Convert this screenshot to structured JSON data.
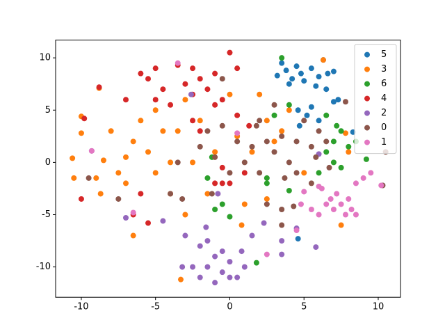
{
  "chart_data": {
    "type": "scatter",
    "xlim": [
      -11.73,
      11.5
    ],
    "ylim": [
      -12.9,
      11.7
    ],
    "xticks": [
      -10,
      -5,
      0,
      5,
      10
    ],
    "yticks": [
      -10,
      -5,
      0,
      5,
      10
    ],
    "legend": "upper right",
    "series": [
      {
        "name": "5",
        "color": "#1f77b4",
        "x": [
          3.2,
          3.8,
          4.2,
          4.5,
          4.8,
          5.0,
          5.5,
          6.0,
          6.3,
          6.6,
          7.0,
          4.0,
          5.8,
          6.5,
          3.5,
          4.6,
          5.2,
          6.0,
          4.7,
          7.3,
          5.5,
          8.3,
          4.6,
          7.0
        ],
        "values": [
          8.3,
          8.8,
          8.0,
          9.2,
          8.5,
          7.8,
          9.0,
          8.2,
          9.8,
          8.5,
          8.7,
          7.5,
          7.3,
          7.0,
          9.5,
          5.0,
          4.5,
          4.0,
          3.5,
          6.0,
          5.3,
          2.9,
          -7.3,
          5.8
        ]
      },
      {
        "name": "3",
        "color": "#ff7f0e",
        "x": [
          -10.6,
          -10.5,
          -10,
          -10,
          -9.0,
          -8.7,
          -8.5,
          -8.8,
          -8,
          -7.5,
          -7,
          -7,
          -6.5,
          -6.5,
          -6,
          -5.5,
          -5,
          -5,
          -4.5,
          -4,
          -4,
          -3.5,
          -3,
          -3,
          -3.3,
          -2.5,
          -2,
          -1.5,
          -1,
          0,
          0.5,
          1,
          1.5,
          2,
          2.5,
          3,
          3.5,
          4,
          0.8,
          5,
          6.3,
          7.5,
          7.8,
          8,
          2.5
        ],
        "values": [
          0.4,
          -1.5,
          4.4,
          2.8,
          -1.5,
          -3,
          0.2,
          7.1,
          3,
          -1,
          -2,
          0.5,
          2,
          -7,
          4,
          1,
          5,
          -1,
          3,
          0,
          -3,
          3,
          6,
          -5,
          -11.2,
          0,
          4,
          -3,
          1,
          6.5,
          2.5,
          -4,
          1,
          6.5,
          4,
          2,
          3,
          5,
          -6,
          -1,
          9.8,
          -6,
          2.8,
          1,
          -3.5
        ]
      },
      {
        "name": "6",
        "color": "#2ca02c",
        "x": [
          3.5,
          4,
          3,
          6.5,
          7,
          7.5,
          7,
          7.5,
          8,
          8.5,
          6.5,
          9.2,
          6,
          -1,
          -0.5,
          0,
          2.5,
          4,
          1.8,
          -1.5,
          -1.2,
          2.5,
          7.2
        ],
        "values": [
          10,
          5.5,
          4.5,
          1,
          2,
          3,
          0,
          -0.5,
          1.5,
          2,
          4.5,
          0.3,
          -1,
          -4.5,
          -4,
          -5.2,
          -2,
          -2.7,
          -9.6,
          -1.5,
          0.5,
          -1.5,
          3.5
        ]
      },
      {
        "name": "4",
        "color": "#d62728",
        "x": [
          -10,
          -9.8,
          -8.8,
          -7,
          -6.5,
          -6,
          -5.5,
          -5,
          -5,
          -4.5,
          -4,
          -3.5,
          -3,
          -2.5,
          -2.5,
          -2,
          -1.5,
          -1,
          -1,
          -0.5,
          0,
          0.5,
          0.5,
          -1,
          -0.5,
          0,
          1,
          -2,
          -2.5,
          -6,
          -5.5,
          1.3,
          -0.5
        ],
        "values": [
          -3.5,
          4.2,
          7.2,
          6,
          -5,
          8.5,
          8,
          9,
          6,
          7,
          5.5,
          9.3,
          7.5,
          9,
          6.5,
          8,
          7,
          8.5,
          5.5,
          6,
          10.5,
          9,
          4.5,
          -2,
          -2,
          -2,
          -1,
          3,
          4,
          -3,
          -5.8,
          3.5,
          -0.5
        ]
      },
      {
        "name": "2",
        "color": "#9467bd",
        "x": [
          -1,
          -1.5,
          -2,
          -2.5,
          -0.5,
          0,
          0.5,
          1,
          -1,
          0,
          -2,
          -3,
          -3.2,
          -1.5,
          -0.5,
          1.5,
          0.8,
          2.3,
          3.5,
          3.5,
          5.8,
          -7,
          -4.5,
          -9.3,
          -2.6,
          -1.6,
          6,
          10.3,
          -0.8,
          4.5
        ],
        "values": [
          -9,
          -10,
          -11,
          -10,
          -10.5,
          -9.5,
          -11,
          -10,
          -11.5,
          -11,
          -8,
          -7,
          -10,
          -7.5,
          -8.5,
          -7,
          -8.5,
          -5.8,
          -7.5,
          -8.8,
          -8.1,
          -5.3,
          -5.6,
          1.1,
          6.5,
          -6.2,
          0.8,
          -2.2,
          -3,
          -6.3
        ]
      },
      {
        "name": "0",
        "color": "#8c564b",
        "x": [
          -9.5,
          -7.5,
          -4,
          -3.5,
          -2,
          -1.5,
          -1,
          -0.5,
          -0.5,
          0,
          0.5,
          1,
          1.5,
          1.8,
          2,
          2,
          2.5,
          2.5,
          3,
          3,
          3.5,
          3.7,
          4,
          4.5,
          4.5,
          5,
          5.5,
          5.5,
          5.8,
          6,
          6.5,
          6.7,
          4.3,
          3.5,
          10.3,
          10.5,
          -3.2,
          -1.2,
          3.5,
          7.8
        ],
        "values": [
          -1.5,
          -3.5,
          -3,
          0,
          1.5,
          3,
          0.5,
          8,
          3.5,
          -1,
          2,
          0,
          1.5,
          3.5,
          -1,
          4,
          2,
          -4,
          1,
          5.5,
          2.5,
          -1.5,
          0,
          -1,
          2,
          4,
          1.5,
          -2,
          0.5,
          3,
          2,
          -0.5,
          -4.2,
          -4.5,
          -2.2,
          1,
          -3.5,
          -3,
          -6,
          5.8
        ]
      },
      {
        "name": "1",
        "color": "#e377c2",
        "x": [
          5,
          5.5,
          6,
          6.5,
          6.8,
          7,
          7.2,
          7.5,
          7.8,
          8,
          8.2,
          8.5,
          8.5,
          9,
          6.2,
          4.8,
          4.5,
          9.5,
          10.2,
          -9.3,
          -6.5,
          -3.5,
          0.5,
          2.5,
          6
        ],
        "values": [
          -2.8,
          -4.5,
          -5,
          -4,
          -3.5,
          -4.5,
          -3,
          -4,
          -5,
          -3.5,
          -4.5,
          -5,
          -2,
          -1.5,
          -2.5,
          -4,
          -6.5,
          -1,
          -2.2,
          1.1,
          -4.8,
          9.5,
          2.8,
          -8.8,
          -2.3
        ]
      }
    ]
  }
}
